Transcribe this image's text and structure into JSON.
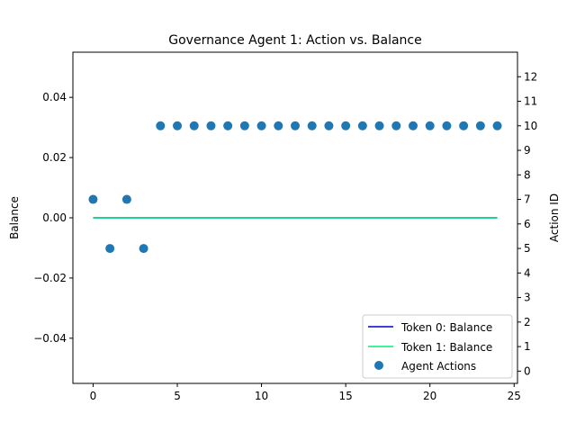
{
  "chart_data": {
    "type": "scatter",
    "title": "Governance Agent 1: Action vs. Balance",
    "xlabel": "",
    "ylabel": "Balance",
    "y2label": "Action ID",
    "xlim": [
      -1.2,
      25.2
    ],
    "ylim": [
      -0.055,
      0.055
    ],
    "y2lim": [
      -0.5,
      13.0
    ],
    "xticks": [
      0,
      5,
      10,
      15,
      20,
      25
    ],
    "yticks": [
      -0.04,
      -0.02,
      0.0,
      0.02,
      0.04
    ],
    "ytick_labels": [
      "−0.04",
      "−0.02",
      "0.00",
      "0.02",
      "0.04"
    ],
    "y2ticks": [
      0,
      1,
      2,
      3,
      4,
      5,
      6,
      7,
      8,
      9,
      10,
      11,
      12
    ],
    "grid": false,
    "legend_position": "lower-right",
    "series": [
      {
        "name": "Token 0: Balance",
        "kind": "line",
        "axis": "left",
        "color": "#0000cc",
        "x": [
          0,
          24
        ],
        "y": [
          0.0,
          0.0
        ]
      },
      {
        "name": "Token 1: Balance",
        "kind": "line",
        "axis": "left",
        "color": "#00ee77",
        "x": [
          0,
          24
        ],
        "y": [
          0.0,
          0.0
        ]
      },
      {
        "name": "Agent Actions",
        "kind": "scatter",
        "axis": "right",
        "color": "#1f77b4",
        "x": [
          0,
          1,
          2,
          3,
          4,
          5,
          6,
          7,
          8,
          9,
          10,
          11,
          12,
          13,
          14,
          15,
          16,
          17,
          18,
          19,
          20,
          21,
          22,
          23,
          24
        ],
        "y": [
          7,
          5,
          7,
          5,
          10,
          10,
          10,
          10,
          10,
          10,
          10,
          10,
          10,
          10,
          10,
          10,
          10,
          10,
          10,
          10,
          10,
          10,
          10,
          10,
          10
        ]
      }
    ]
  }
}
